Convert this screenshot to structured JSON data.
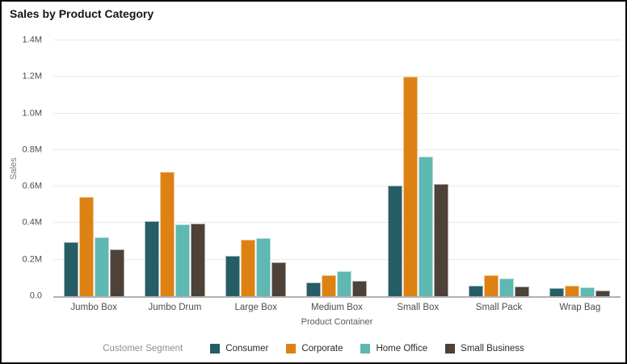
{
  "title": "Sales by Product Category",
  "chart_data": {
    "type": "bar",
    "title": "Sales by Product Category",
    "xlabel": "Product Container",
    "ylabel": "Sales",
    "legend_title": "Customer Segment",
    "legend_position": "bottom",
    "grid": true,
    "ylim": [
      0,
      1400000
    ],
    "ytick_step": 200000,
    "ytick_labels": [
      "0.0",
      "0.2M",
      "0.4M",
      "0.6M",
      "0.8M",
      "1.0M",
      "1.2M",
      "1.4M"
    ],
    "categories": [
      "Jumbo Box",
      "Jumbo Drum",
      "Large Box",
      "Medium Box",
      "Small Box",
      "Small Pack",
      "Wrap Bag"
    ],
    "series": [
      {
        "name": "Consumer",
        "color": "#265d66",
        "values": [
          298000,
          410000,
          222000,
          75000,
          607000,
          58000,
          45000
        ]
      },
      {
        "name": "Corporate",
        "color": "#de8113",
        "values": [
          545000,
          680000,
          311000,
          115000,
          1200000,
          115000,
          57000
        ]
      },
      {
        "name": "Home Office",
        "color": "#5fb8b2",
        "values": [
          324000,
          393000,
          319000,
          136000,
          766000,
          98000,
          50000
        ]
      },
      {
        "name": "Small Business",
        "color": "#4d4138",
        "values": [
          256000,
          396000,
          186000,
          84000,
          614000,
          53000,
          33000
        ]
      }
    ]
  }
}
